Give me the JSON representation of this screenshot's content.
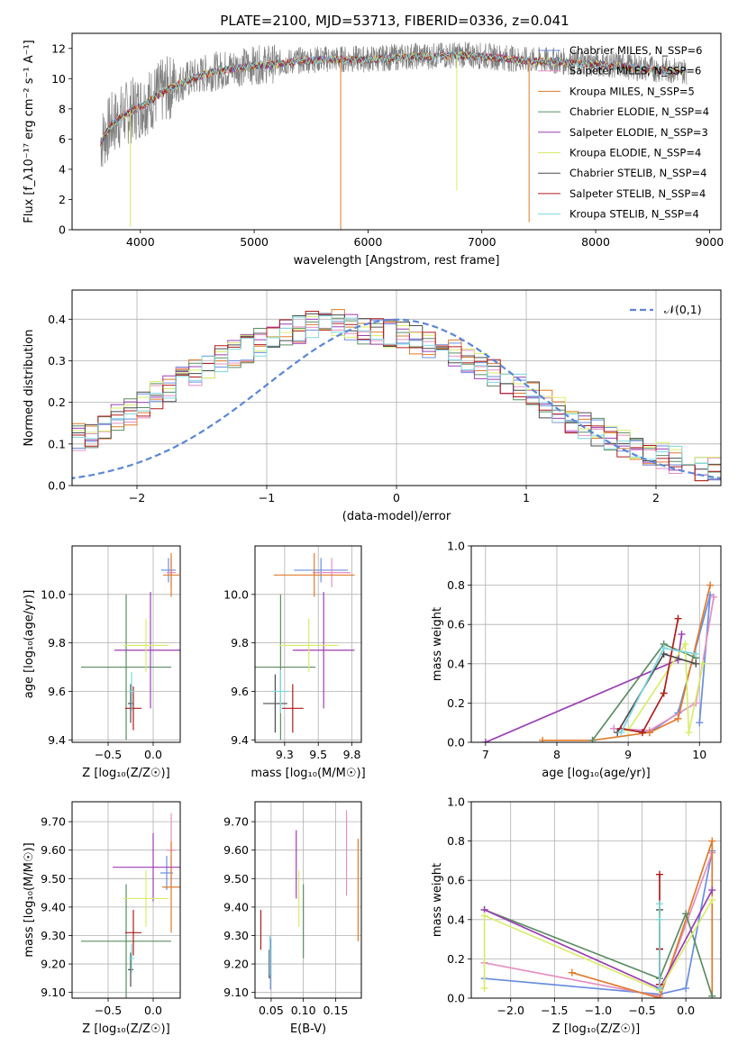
{
  "title": "PLATE=2100, MJD=53713, FIBERID=0336, z=0.041",
  "colors": {
    "chabrier_miles": "#6a8ee0",
    "salpeter_miles": "#e58fc3",
    "kroupa_miles": "#e07b2c",
    "chabrier_elodie": "#5b8d64",
    "salpeter_elodie": "#9b3fb3",
    "kroupa_elodie": "#d9ec6a",
    "chabrier_stelib": "#4d4d4d",
    "salpeter_stelib": "#b01c1c",
    "kroupa_stelib": "#7fd8de",
    "data": "#808080"
  },
  "chart_data": [
    {
      "id": "spectrum",
      "type": "line",
      "xlabel": "wavelength [Angstrom, rest frame]",
      "ylabel": "Flux [f_λ10⁻¹⁷ erg cm⁻² s⁻¹ A⁻¹]",
      "xlim": [
        3400,
        9100
      ],
      "ylim": [
        0,
        13
      ],
      "xticks": [
        4000,
        5000,
        6000,
        7000,
        8000,
        9000
      ],
      "yticks": [
        0,
        2,
        4,
        6,
        8,
        10,
        12
      ],
      "legend_position": "top-right",
      "legend": [
        "Chabrier MILES, N_SSP=6",
        "Salpeter MILES, N_SSP=6",
        "Kroupa MILES, N_SSP=5",
        "Chabrier ELODIE, N_SSP=4",
        "Salpeter ELODIE, N_SSP=3",
        "Kroupa ELODIE, N_SSP=4",
        "Chabrier STELIB, N_SSP=4",
        "Salpeter STELIB, N_SSP=4",
        "Kroupa STELIB, N_SSP=4"
      ],
      "data_envelope": {
        "x": [
          3650,
          3750,
          3850,
          3950,
          4050,
          4200,
          4400,
          4600,
          4800,
          5000,
          5200,
          5400,
          5600,
          5800,
          6000,
          6200,
          6400,
          6600,
          6800,
          7000,
          7200,
          7400,
          7600,
          7800,
          8000,
          8200,
          8400,
          8600,
          8800
        ],
        "y": [
          5.8,
          7.0,
          7.6,
          8.0,
          8.4,
          9.2,
          9.9,
          10.4,
          10.7,
          10.9,
          11.0,
          11.2,
          11.3,
          11.3,
          11.3,
          11.4,
          11.5,
          11.5,
          11.6,
          11.5,
          11.4,
          11.2,
          11.2,
          11.1,
          11.0,
          10.9,
          10.7,
          10.6,
          10.5
        ]
      },
      "model_spikes": [
        {
          "x": 5760,
          "y": 0,
          "series": "kroupa_miles"
        },
        {
          "x": 7415,
          "y": 0.5,
          "series": "kroupa_miles"
        },
        {
          "x": 6780,
          "y": 2.6,
          "series": "kroupa_elodie"
        },
        {
          "x": 3910,
          "y": 0.2,
          "series": "kroupa_elodie"
        }
      ]
    },
    {
      "id": "residuals",
      "type": "area",
      "xlabel": "(data-model)/error",
      "ylabel": "Normed distribution",
      "xlim": [
        -2.5,
        2.5
      ],
      "ylim": [
        0,
        0.47
      ],
      "xticks": [
        -2,
        -1,
        0,
        1,
        2
      ],
      "yticks": [
        0.0,
        0.1,
        0.2,
        0.3,
        0.4
      ],
      "grid": true,
      "legend": [
        "𝒩(0,1)"
      ],
      "legend_position": "top-right",
      "bin_width": 0.1,
      "hist_center": [
        0.025,
        0.03,
        0.035,
        0.045,
        0.05,
        0.06,
        0.07,
        0.08,
        0.09,
        0.1,
        0.115,
        0.125,
        0.14,
        0.16,
        0.175,
        0.195,
        0.215,
        0.235,
        0.255,
        0.275,
        0.29,
        0.305,
        0.315,
        0.33,
        0.345,
        0.355,
        0.365,
        0.375,
        0.385,
        0.39,
        0.39,
        0.38,
        0.375,
        0.37,
        0.365,
        0.36,
        0.35,
        0.34,
        0.33,
        0.315,
        0.3,
        0.285,
        0.27,
        0.25,
        0.235,
        0.215,
        0.195,
        0.18,
        0.16,
        0.145,
        0.13,
        0.115,
        0.1,
        0.09,
        0.08,
        0.07,
        0.06,
        0.05,
        0.045,
        0.04,
        0.035,
        0.03,
        0.027,
        0.025,
        0.022,
        0.02,
        0.02,
        0.018,
        0.018,
        0.016
      ]
    },
    {
      "id": "age-vs-Z",
      "type": "scatter",
      "xlabel": "Z [log₁₀(Z/Z☉)]",
      "ylabel": "age  [log₁₀(age/yr)]",
      "xlim": [
        -0.9,
        0.3
      ],
      "ylim": [
        9.39,
        10.2
      ],
      "xticks": [
        -0.5,
        0.0
      ],
      "yticks": [
        9.4,
        9.6,
        9.8,
        10.0
      ],
      "grid": true,
      "points": [
        {
          "series": "chabrier_miles",
          "x": 0.17,
          "y": 10.1,
          "xerr": 0.08,
          "yerr": 0.05
        },
        {
          "series": "salpeter_miles",
          "x": 0.2,
          "y": 10.09,
          "xerr": 0.05,
          "yerr": 0.06
        },
        {
          "series": "kroupa_miles",
          "x": 0.2,
          "y": 10.08,
          "xerr": 0.09,
          "yerr": 0.09
        },
        {
          "series": "chabrier_elodie",
          "x": -0.3,
          "y": 9.7,
          "xerr": 0.5,
          "yerr": 0.3
        },
        {
          "series": "salpeter_elodie",
          "x": -0.03,
          "y": 9.77,
          "xerr": 0.4,
          "yerr": 0.24
        },
        {
          "series": "kroupa_elodie",
          "x": -0.08,
          "y": 9.79,
          "xerr": 0.25,
          "yerr": 0.11
        },
        {
          "series": "chabrier_stelib",
          "x": -0.25,
          "y": 9.55,
          "xerr": 0.03,
          "yerr": 0.08
        },
        {
          "series": "salpeter_stelib",
          "x": -0.22,
          "y": 9.53,
          "xerr": 0.09,
          "yerr": 0.09
        },
        {
          "series": "kroupa_stelib",
          "x": -0.24,
          "y": 9.6,
          "xerr": 0.03,
          "yerr": 0.08
        }
      ]
    },
    {
      "id": "age-vs-mass",
      "type": "scatter",
      "xlabel": "mass [log₁₀(M/M☉)]",
      "ylabel": "",
      "xlim": [
        9.03,
        9.82
      ],
      "ylim": [
        9.39,
        10.2
      ],
      "xticks": [
        9.25,
        9.5,
        9.75
      ],
      "yticks": [
        9.4,
        9.6,
        9.8,
        10.0
      ],
      "grid": true,
      "points": [
        {
          "series": "chabrier_miles",
          "x": 9.52,
          "y": 10.1,
          "xerr": 0.2,
          "yerr": 0.05
        },
        {
          "series": "salpeter_miles",
          "x": 9.6,
          "y": 10.09,
          "xerr": 0.14,
          "yerr": 0.06
        },
        {
          "series": "kroupa_miles",
          "x": 9.47,
          "y": 10.08,
          "xerr": 0.3,
          "yerr": 0.09
        },
        {
          "series": "chabrier_elodie",
          "x": 9.22,
          "y": 9.7,
          "xerr": 0.26,
          "yerr": 0.3
        },
        {
          "series": "salpeter_elodie",
          "x": 9.54,
          "y": 9.77,
          "xerr": 0.23,
          "yerr": 0.24
        },
        {
          "series": "kroupa_elodie",
          "x": 9.43,
          "y": 9.79,
          "xerr": 0.22,
          "yerr": 0.11
        },
        {
          "series": "chabrier_stelib",
          "x": 9.18,
          "y": 9.55,
          "xerr": 0.09,
          "yerr": 0.12
        },
        {
          "series": "salpeter_stelib",
          "x": 9.31,
          "y": 9.53,
          "xerr": 0.08,
          "yerr": 0.1
        },
        {
          "series": "kroupa_stelib",
          "x": 9.22,
          "y": 9.6,
          "xerr": 0.06,
          "yerr": 0.09
        }
      ]
    },
    {
      "id": "weight-vs-age",
      "type": "line",
      "xlabel": "age  [log₁₀(age/yr)]",
      "ylabel": "mass weight",
      "xlim": [
        6.8,
        10.3
      ],
      "ylim": [
        0,
        1
      ],
      "xticks": [
        7,
        8,
        9,
        10
      ],
      "yticks": [
        0.0,
        0.2,
        0.4,
        0.6,
        0.8,
        1.0
      ],
      "grid": true,
      "series": [
        {
          "key": "chabrier_miles",
          "x": [
            8.8,
            9.3,
            9.7,
            10.15,
            10.0
          ],
          "y": [
            0.07,
            0.05,
            0.15,
            0.75,
            0.1
          ]
        },
        {
          "key": "salpeter_miles",
          "x": [
            8.8,
            9.3,
            9.95,
            10.2
          ],
          "y": [
            0.07,
            0.06,
            0.2,
            0.74
          ]
        },
        {
          "key": "kroupa_miles",
          "x": [
            7.8,
            8.5,
            9.3,
            9.7,
            10.15
          ],
          "y": [
            0.01,
            0.01,
            0.05,
            0.12,
            0.8
          ]
        },
        {
          "key": "chabrier_elodie",
          "x": [
            8.5,
            9.5,
            9.95
          ],
          "y": [
            0.01,
            0.5,
            0.43
          ]
        },
        {
          "key": "salpeter_elodie",
          "x": [
            7.0,
            9.7,
            9.75
          ],
          "y": [
            0.0,
            0.42,
            0.55
          ]
        },
        {
          "key": "kroupa_elodie",
          "x": [
            9.0,
            9.8,
            9.85,
            10.05
          ],
          "y": [
            0.06,
            0.5,
            0.05,
            0.4
          ]
        },
        {
          "key": "chabrier_stelib",
          "x": [
            8.85,
            9.5,
            9.95
          ],
          "y": [
            0.05,
            0.45,
            0.4
          ]
        },
        {
          "key": "salpeter_stelib",
          "x": [
            8.9,
            9.2,
            9.5,
            9.7
          ],
          "y": [
            0.07,
            0.05,
            0.25,
            0.63
          ]
        },
        {
          "key": "kroupa_stelib",
          "x": [
            8.9,
            9.5,
            9.95
          ],
          "y": [
            0.05,
            0.48,
            0.45
          ]
        }
      ]
    },
    {
      "id": "mass-vs-Z",
      "type": "scatter",
      "xlabel": "Z [log₁₀(Z/Z☉)]",
      "ylabel": "mass [log₁₀(M/M☉)]",
      "xlim": [
        -0.9,
        0.3
      ],
      "ylim": [
        9.08,
        9.77
      ],
      "xticks": [
        -0.5,
        0.0
      ],
      "yticks": [
        9.1,
        9.2,
        9.3,
        9.4,
        9.5,
        9.6,
        9.7
      ],
      "grid": true,
      "points": [
        {
          "series": "chabrier_miles",
          "x": 0.15,
          "y": 9.52,
          "xerr": 0.07,
          "yerr": 0.06
        },
        {
          "series": "salpeter_miles",
          "x": 0.2,
          "y": 9.6,
          "xerr": 0.05,
          "yerr": 0.13
        },
        {
          "series": "kroupa_miles",
          "x": 0.2,
          "y": 9.47,
          "xerr": 0.1,
          "yerr": 0.16
        },
        {
          "series": "chabrier_elodie",
          "x": -0.3,
          "y": 9.28,
          "xerr": 0.5,
          "yerr": 0.2
        },
        {
          "series": "salpeter_elodie",
          "x": 0.0,
          "y": 9.54,
          "xerr": 0.45,
          "yerr": 0.12
        },
        {
          "series": "kroupa_elodie",
          "x": -0.08,
          "y": 9.43,
          "xerr": 0.25,
          "yerr": 0.1
        },
        {
          "series": "chabrier_stelib",
          "x": -0.25,
          "y": 9.18,
          "xerr": 0.03,
          "yerr": 0.06
        },
        {
          "series": "salpeter_stelib",
          "x": -0.22,
          "y": 9.31,
          "xerr": 0.09,
          "yerr": 0.08
        },
        {
          "series": "kroupa_stelib",
          "x": -0.24,
          "y": 9.22,
          "xerr": 0.03,
          "yerr": 0.05
        }
      ]
    },
    {
      "id": "mass-vs-ebv",
      "type": "scatter",
      "xlabel": "E(B-V)",
      "ylabel": "",
      "xlim": [
        0.025,
        0.19
      ],
      "ylim": [
        9.08,
        9.77
      ],
      "xticks": [
        0.05,
        0.1,
        0.15
      ],
      "yticks": [
        9.1,
        9.2,
        9.3,
        9.4,
        9.5,
        9.6,
        9.7
      ],
      "grid": true,
      "points": [
        {
          "series": "chabrier_miles",
          "x": 0.049,
          "y": 9.2,
          "xerr": 0,
          "yerr": 0.09
        },
        {
          "series": "salpeter_miles",
          "x": 0.167,
          "y": 9.59,
          "xerr": 0,
          "yerr": 0.15
        },
        {
          "series": "kroupa_miles",
          "x": 0.185,
          "y": 9.46,
          "xerr": 0,
          "yerr": 0.18
        },
        {
          "series": "chabrier_elodie",
          "x": 0.1,
          "y": 9.35,
          "xerr": 0,
          "yerr": 0.13
        },
        {
          "series": "salpeter_elodie",
          "x": 0.089,
          "y": 9.55,
          "xerr": 0,
          "yerr": 0.12
        },
        {
          "series": "kroupa_elodie",
          "x": 0.093,
          "y": 9.43,
          "xerr": 0,
          "yerr": 0.1
        },
        {
          "series": "chabrier_stelib",
          "x": 0.047,
          "y": 9.2,
          "xerr": 0,
          "yerr": 0.05
        },
        {
          "series": "salpeter_stelib",
          "x": 0.034,
          "y": 9.32,
          "xerr": 0,
          "yerr": 0.07
        },
        {
          "series": "kroupa_stelib",
          "x": 0.048,
          "y": 9.23,
          "xerr": 0,
          "yerr": 0.07
        }
      ]
    },
    {
      "id": "weight-vs-Z",
      "type": "line",
      "xlabel": "Z [log₁₀(Z/Z☉)]",
      "ylabel": "mass weight",
      "xlim": [
        -2.45,
        0.4
      ],
      "ylim": [
        0,
        1
      ],
      "xticks": [
        -2.0,
        -1.5,
        -1.0,
        -0.5,
        0.0
      ],
      "yticks": [
        0.0,
        0.2,
        0.4,
        0.6,
        0.8,
        1.0
      ],
      "grid": true,
      "series": [
        {
          "key": "chabrier_miles",
          "x": [
            -2.3,
            -0.3,
            0.0,
            0.3
          ],
          "y": [
            0.1,
            0.02,
            0.05,
            0.75
          ]
        },
        {
          "key": "salpeter_miles",
          "x": [
            -2.3,
            -0.3,
            0.3
          ],
          "y": [
            0.18,
            0.01,
            0.74
          ]
        },
        {
          "key": "kroupa_miles",
          "x": [
            -1.3,
            -0.3,
            0.3,
            0.3
          ],
          "y": [
            0.13,
            0.0,
            0.8,
            0.01
          ]
        },
        {
          "key": "chabrier_elodie",
          "x": [
            -2.3,
            -0.3,
            0.0,
            0.3
          ],
          "y": [
            0.45,
            0.1,
            0.43,
            0.01
          ]
        },
        {
          "key": "salpeter_elodie",
          "x": [
            -2.3,
            -0.3,
            0.3
          ],
          "y": [
            0.45,
            0.05,
            0.55
          ]
        },
        {
          "key": "kroupa_elodie",
          "x": [
            -2.3,
            -2.3,
            -0.3,
            0.3
          ],
          "y": [
            0.05,
            0.42,
            0.04,
            0.5
          ]
        },
        {
          "key": "chabrier_stelib",
          "x": [
            -0.3,
            -0.3,
            -0.3
          ],
          "y": [
            0.45,
            0.25,
            0.05
          ]
        },
        {
          "key": "salpeter_stelib",
          "x": [
            -0.3,
            -0.3,
            -0.3
          ],
          "y": [
            0.63,
            0.25,
            0.07
          ]
        },
        {
          "key": "kroupa_stelib",
          "x": [
            -0.3,
            -0.3,
            -0.3
          ],
          "y": [
            0.48,
            0.4,
            0.05
          ]
        }
      ]
    }
  ]
}
